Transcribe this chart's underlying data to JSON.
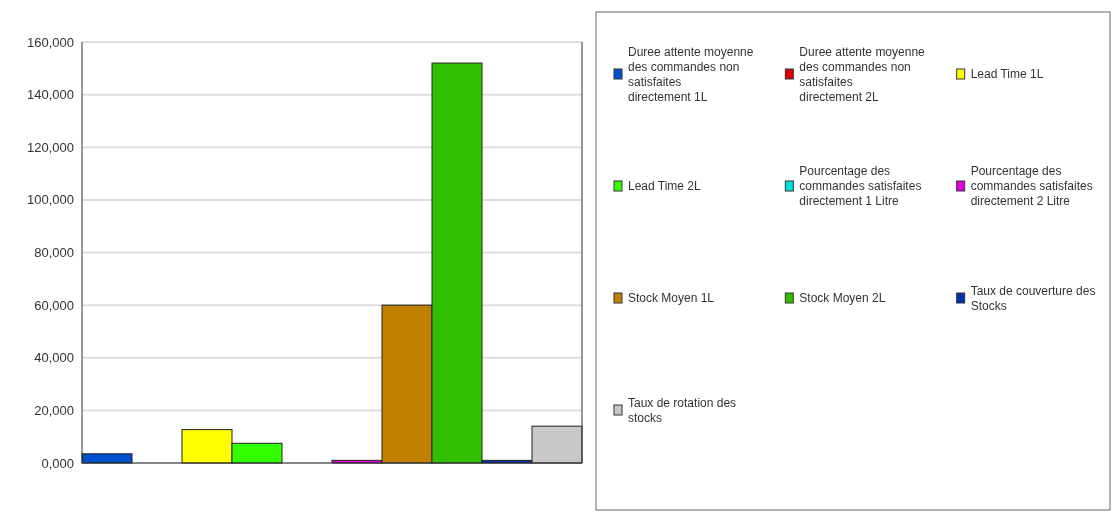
{
  "chart_data": {
    "type": "bar",
    "categories": [
      null
    ],
    "series": [
      {
        "name": "Duree attente moyenne des commandes non satisfaites directement 1L",
        "color": "#0050d0",
        "values": [
          3500
        ]
      },
      {
        "name": "Duree attente moyenne des commandes non satisfaites directement 2L",
        "color": "#e00000",
        "values": [
          0
        ]
      },
      {
        "name": "Lead Time 1L",
        "color": "#ffff00",
        "values": [
          12700
        ]
      },
      {
        "name": "Lead Time 2L",
        "color": "#33ff00",
        "values": [
          7500
        ]
      },
      {
        "name": "Pourcentage des commandes satisfaites directement  1 Litre",
        "color": "#00e0e0",
        "values": [
          0
        ]
      },
      {
        "name": "Pourcentage des commandes satisfaites directement 2 Litre",
        "color": "#e000e0",
        "values": [
          1000
        ]
      },
      {
        "name": "Stock Moyen 1L",
        "color": "#c08000",
        "values": [
          60000
        ]
      },
      {
        "name": "Stock Moyen 2L",
        "color": "#30c000",
        "values": [
          152000
        ]
      },
      {
        "name": "Taux de couverture des Stocks",
        "color": "#0030b0",
        "values": [
          1000
        ]
      },
      {
        "name": "Taux de rotation des stocks",
        "color": "#c8c8c8",
        "values": [
          14000
        ]
      }
    ],
    "ylim": [
      0,
      160000
    ],
    "yticks": [
      {
        "value": 0,
        "label": "0,000"
      },
      {
        "value": 20000,
        "label": "20,000"
      },
      {
        "value": 40000,
        "label": "40,000"
      },
      {
        "value": 60000,
        "label": "60,000"
      },
      {
        "value": 80000,
        "label": "80,000"
      },
      {
        "value": 100000,
        "label": "100,000"
      },
      {
        "value": 120000,
        "label": "120,000"
      },
      {
        "value": 140000,
        "label": "140,000"
      },
      {
        "value": 160000,
        "label": "160,000"
      }
    ],
    "grid": "y",
    "legend": "right"
  }
}
